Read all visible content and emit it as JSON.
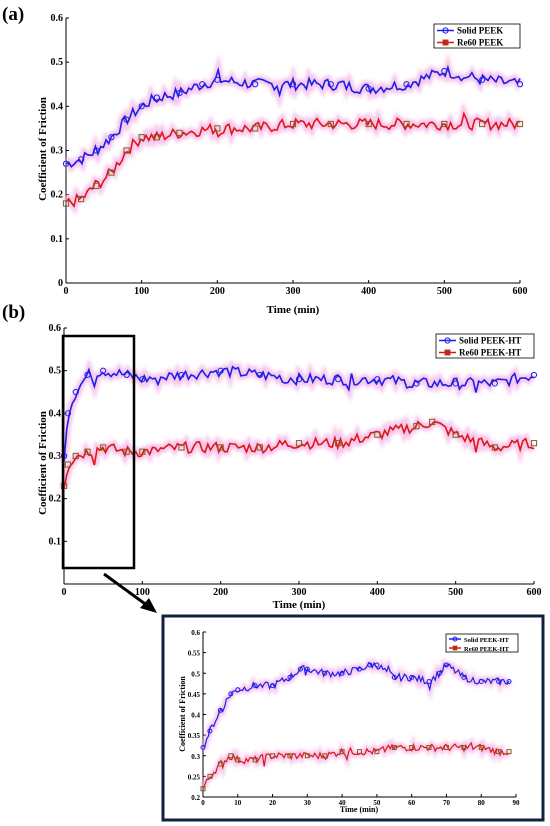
{
  "panels": {
    "a": {
      "label": "(a)"
    },
    "b": {
      "label": "(b)"
    }
  },
  "colors": {
    "blue": "#1f1fe6",
    "red": "#e01616",
    "pink_glow": "#f3b6e8",
    "marker_edge_red": "#8a5a20"
  },
  "chart_data": [
    {
      "id": "a",
      "type": "line",
      "xlabel": "Time (min)",
      "ylabel": "Coefficient of Friction",
      "xlim": [
        0,
        600
      ],
      "ylim": [
        0,
        0.6
      ],
      "xticks": [
        0,
        100,
        200,
        300,
        400,
        500,
        600
      ],
      "yticks": [
        0,
        0.1,
        0.2,
        0.3,
        0.4,
        0.5,
        0.6
      ],
      "grid": false,
      "legend_position": "top-right",
      "series": [
        {
          "name": "Solid PEEK",
          "color": "blue",
          "marker": "circle",
          "x": [
            0,
            20,
            40,
            60,
            80,
            100,
            120,
            150,
            180,
            200,
            250,
            300,
            350,
            400,
            450,
            500,
            550,
            600
          ],
          "y": [
            0.27,
            0.28,
            0.3,
            0.33,
            0.37,
            0.4,
            0.42,
            0.43,
            0.45,
            0.46,
            0.45,
            0.45,
            0.45,
            0.44,
            0.45,
            0.48,
            0.46,
            0.45
          ]
        },
        {
          "name": "Re60 PEEK",
          "color": "red",
          "marker": "square",
          "x": [
            0,
            20,
            40,
            60,
            80,
            100,
            120,
            150,
            200,
            250,
            300,
            350,
            400,
            450,
            500,
            550,
            600
          ],
          "y": [
            0.18,
            0.19,
            0.22,
            0.25,
            0.3,
            0.33,
            0.33,
            0.34,
            0.35,
            0.35,
            0.36,
            0.36,
            0.36,
            0.36,
            0.36,
            0.36,
            0.36
          ]
        }
      ]
    },
    {
      "id": "b",
      "type": "line",
      "xlabel": "Time (min)",
      "ylabel": "Coefficient of Friction",
      "xlim": [
        0,
        600
      ],
      "ylim": [
        0,
        0.6
      ],
      "xticks": [
        0,
        100,
        200,
        300,
        400,
        500,
        600
      ],
      "yticks": [
        0.1,
        0.2,
        0.3,
        0.4,
        0.5,
        0.6
      ],
      "grid": false,
      "legend_position": "top-right",
      "series": [
        {
          "name": "Solid PEEK-HT",
          "color": "blue",
          "marker": "circle",
          "x": [
            0,
            5,
            15,
            30,
            50,
            80,
            100,
            150,
            200,
            250,
            300,
            350,
            400,
            450,
            500,
            550,
            600
          ],
          "y": [
            0.3,
            0.4,
            0.45,
            0.49,
            0.5,
            0.49,
            0.48,
            0.49,
            0.5,
            0.49,
            0.48,
            0.48,
            0.48,
            0.47,
            0.47,
            0.47,
            0.49
          ]
        },
        {
          "name": "Re60 PEEK-HT",
          "color": "red",
          "marker": "square",
          "x": [
            0,
            5,
            15,
            30,
            50,
            80,
            100,
            150,
            200,
            250,
            300,
            350,
            400,
            450,
            470,
            500,
            550,
            600
          ],
          "y": [
            0.23,
            0.28,
            0.3,
            0.31,
            0.32,
            0.31,
            0.31,
            0.32,
            0.32,
            0.32,
            0.33,
            0.33,
            0.35,
            0.37,
            0.38,
            0.35,
            0.32,
            0.33
          ]
        }
      ]
    },
    {
      "id": "b-inset",
      "type": "line",
      "xlabel": "Time (min)",
      "ylabel": "Coefficient of Friction",
      "xlim": [
        0,
        90
      ],
      "ylim": [
        0.2,
        0.6
      ],
      "xticks": [
        0,
        10,
        20,
        30,
        40,
        50,
        60,
        70,
        80,
        90
      ],
      "yticks": [
        0.2,
        0.25,
        0.3,
        0.35,
        0.4,
        0.45,
        0.5,
        0.55,
        0.6
      ],
      "grid": false,
      "legend_position": "top-right",
      "series": [
        {
          "name": "Solid PEEK-HT",
          "color": "blue",
          "marker": "circle",
          "x": [
            0,
            2,
            5,
            8,
            10,
            15,
            20,
            25,
            28,
            30,
            35,
            40,
            45,
            48,
            50,
            55,
            60,
            65,
            68,
            70,
            75,
            80,
            85,
            88
          ],
          "y": [
            0.32,
            0.36,
            0.41,
            0.45,
            0.46,
            0.47,
            0.47,
            0.49,
            0.51,
            0.51,
            0.5,
            0.5,
            0.51,
            0.52,
            0.52,
            0.49,
            0.49,
            0.48,
            0.5,
            0.52,
            0.49,
            0.48,
            0.48,
            0.48
          ]
        },
        {
          "name": "Re60 PEEK-HT",
          "color": "red",
          "marker": "square",
          "x": [
            0,
            2,
            5,
            8,
            10,
            15,
            20,
            25,
            30,
            35,
            40,
            45,
            50,
            55,
            60,
            65,
            70,
            75,
            80,
            85,
            88
          ],
          "y": [
            0.22,
            0.25,
            0.28,
            0.3,
            0.29,
            0.29,
            0.3,
            0.3,
            0.3,
            0.3,
            0.31,
            0.31,
            0.31,
            0.32,
            0.32,
            0.32,
            0.32,
            0.32,
            0.32,
            0.31,
            0.31
          ]
        }
      ]
    }
  ]
}
